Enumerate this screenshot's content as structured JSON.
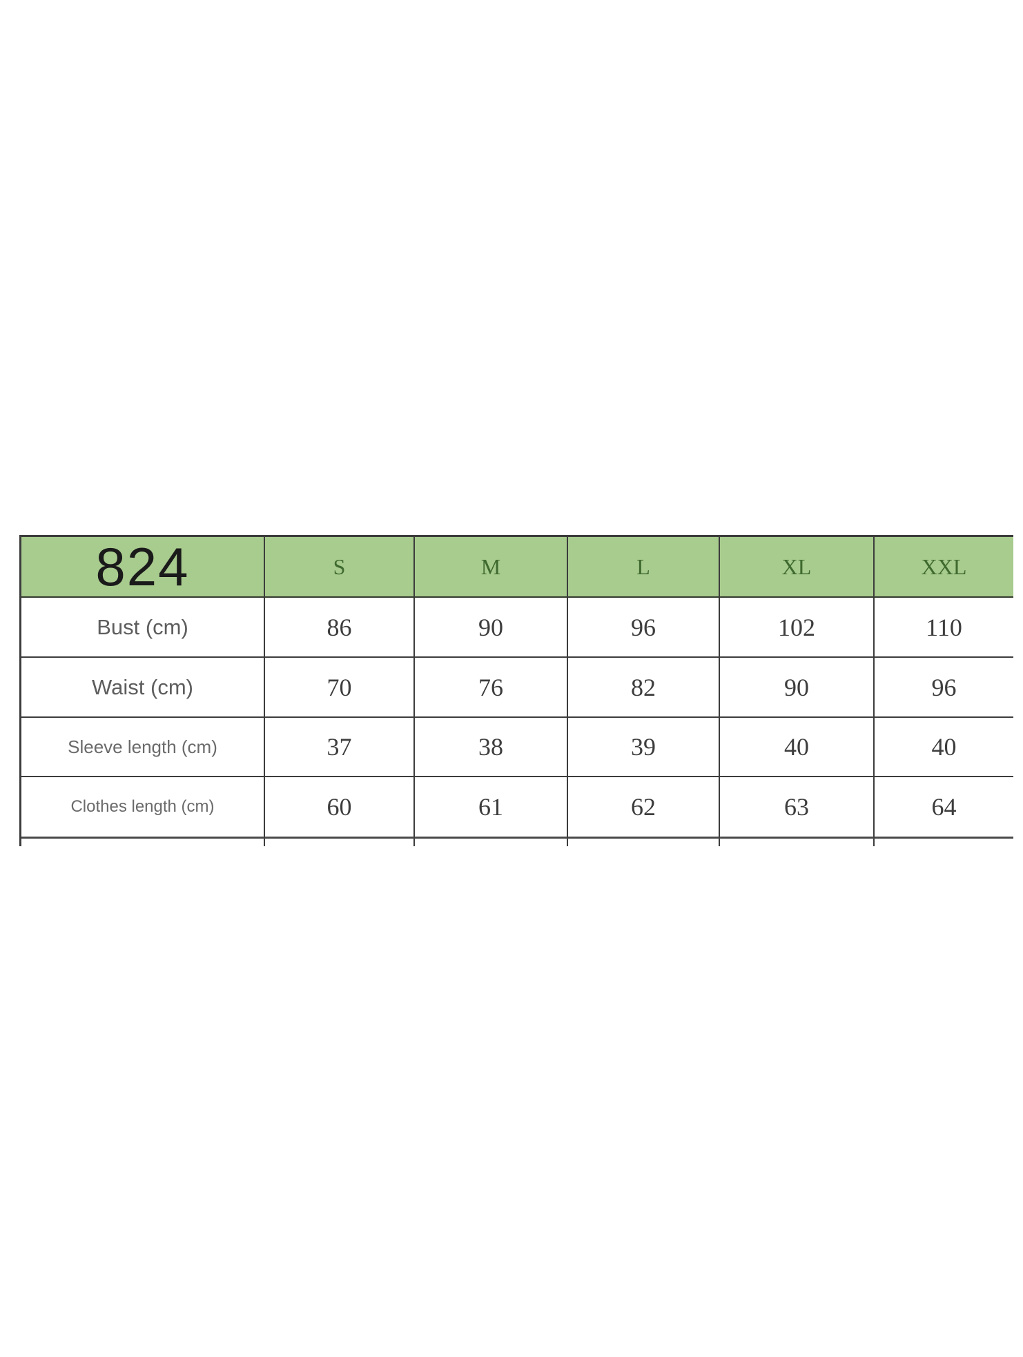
{
  "size_chart": {
    "product_code": "824",
    "columns": [
      "S",
      "M",
      "L",
      "XL",
      "XXL"
    ],
    "rows": [
      {
        "label": "Bust (cm)",
        "values": [
          "86",
          "90",
          "96",
          "102",
          "110"
        ]
      },
      {
        "label": "Waist (cm)",
        "values": [
          "70",
          "76",
          "82",
          "90",
          "96"
        ]
      },
      {
        "label": "Sleeve length (cm)",
        "values": [
          "37",
          "38",
          "39",
          "40",
          "40"
        ]
      },
      {
        "label": "Clothes length (cm)",
        "values": [
          "60",
          "61",
          "62",
          "63",
          "64"
        ]
      }
    ]
  },
  "chart_data": {
    "type": "table",
    "title": "824",
    "units": "cm",
    "columns": [
      "S",
      "M",
      "L",
      "XL",
      "XXL"
    ],
    "row_labels": [
      "Bust (cm)",
      "Waist (cm)",
      "Sleeve length (cm)",
      "Clothes length (cm)"
    ],
    "series": [
      {
        "name": "Bust (cm)",
        "values": [
          86,
          90,
          96,
          102,
          110
        ]
      },
      {
        "name": "Waist (cm)",
        "values": [
          70,
          76,
          82,
          90,
          96
        ]
      },
      {
        "name": "Sleeve length (cm)",
        "values": [
          37,
          38,
          39,
          40,
          40
        ]
      },
      {
        "name": "Clothes length (cm)",
        "values": [
          60,
          61,
          62,
          63,
          64
        ]
      }
    ]
  },
  "theme": {
    "page_bg": "#ffffff",
    "header_bg": "#a8cb8e",
    "header_text": "#3f6a2f",
    "code_text": "#1a1a1a",
    "label_text": "#5d5d5d",
    "value_text": "#3d3d3d",
    "border": "#3c3c3c"
  }
}
